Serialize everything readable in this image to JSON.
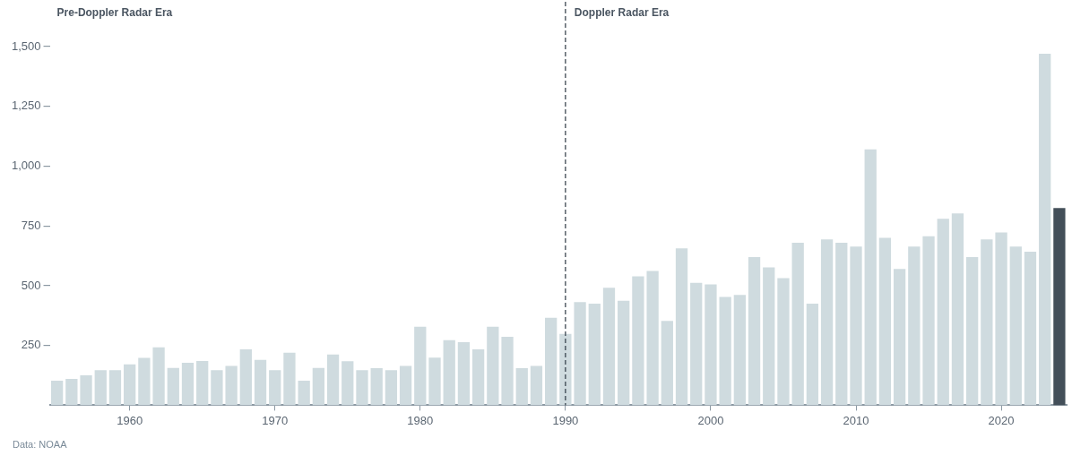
{
  "chart_data": {
    "type": "bar",
    "x": [
      1955,
      1956,
      1957,
      1958,
      1959,
      1960,
      1961,
      1962,
      1963,
      1964,
      1965,
      1966,
      1967,
      1968,
      1969,
      1970,
      1971,
      1972,
      1973,
      1974,
      1975,
      1976,
      1977,
      1978,
      1979,
      1980,
      1981,
      1982,
      1983,
      1984,
      1985,
      1986,
      1987,
      1988,
      1989,
      1990,
      1991,
      1992,
      1993,
      1994,
      1995,
      1996,
      1997,
      1998,
      1999,
      2000,
      2001,
      2002,
      2003,
      2004,
      2005,
      2006,
      2007,
      2008,
      2009,
      2010,
      2011,
      2012,
      2013,
      2014,
      2015,
      2016,
      2017,
      2018,
      2019,
      2020,
      2021,
      2022,
      2023,
      2024
    ],
    "values": [
      103,
      110,
      125,
      147,
      147,
      171,
      198,
      242,
      156,
      178,
      185,
      147,
      164,
      234,
      190,
      147,
      220,
      103,
      156,
      212,
      184,
      147,
      155,
      147,
      164,
      328,
      199,
      272,
      264,
      234,
      328,
      286,
      155,
      164,
      366,
      298,
      431,
      425,
      491,
      437,
      539,
      562,
      353,
      656,
      512,
      505,
      453,
      461,
      620,
      577,
      532,
      680,
      425,
      694,
      680,
      664,
      1070,
      700,
      570,
      664,
      707,
      780,
      802,
      620,
      694,
      723,
      664,
      642,
      1470,
      825
    ],
    "colors": [
      "#cfdbdf",
      "#cfdbdf",
      "#cfdbdf",
      "#cfdbdf",
      "#cfdbdf",
      "#cfdbdf",
      "#cfdbdf",
      "#cfdbdf",
      "#cfdbdf",
      "#cfdbdf",
      "#cfdbdf",
      "#cfdbdf",
      "#cfdbdf",
      "#cfdbdf",
      "#cfdbdf",
      "#cfdbdf",
      "#cfdbdf",
      "#cfdbdf",
      "#cfdbdf",
      "#cfdbdf",
      "#cfdbdf",
      "#cfdbdf",
      "#cfdbdf",
      "#cfdbdf",
      "#cfdbdf",
      "#cfdbdf",
      "#cfdbdf",
      "#cfdbdf",
      "#cfdbdf",
      "#cfdbdf",
      "#cfdbdf",
      "#cfdbdf",
      "#cfdbdf",
      "#cfdbdf",
      "#cfdbdf",
      "#cfdbdf",
      "#cfdbdf",
      "#cfdbdf",
      "#cfdbdf",
      "#cfdbdf",
      "#cfdbdf",
      "#cfdbdf",
      "#cfdbdf",
      "#cfdbdf",
      "#cfdbdf",
      "#cfdbdf",
      "#cfdbdf",
      "#cfdbdf",
      "#cfdbdf",
      "#cfdbdf",
      "#cfdbdf",
      "#cfdbdf",
      "#cfdbdf",
      "#cfdbdf",
      "#cfdbdf",
      "#cfdbdf",
      "#cfdbdf",
      "#cfdbdf",
      "#cfdbdf",
      "#cfdbdf",
      "#cfdbdf",
      "#cfdbdf",
      "#cfdbdf",
      "#cfdbdf",
      "#cfdbdf",
      "#cfdbdf",
      "#cfdbdf",
      "#cfdbdf",
      "#cfdbdf",
      "#434f59"
    ],
    "xlim": [
      1954.5,
      2024.5
    ],
    "xticks": [
      1960,
      1970,
      1980,
      1990,
      2000,
      2010,
      2020
    ],
    "ylim": [
      0,
      1500
    ],
    "yticks": [
      {
        "value": 250,
        "label": "250"
      },
      {
        "value": 500,
        "label": "500"
      },
      {
        "value": 750,
        "label": "750"
      },
      {
        "value": 1000,
        "label": "1,000"
      },
      {
        "value": 1250,
        "label": "1,250"
      },
      {
        "value": 1500,
        "label": "1,500"
      }
    ],
    "ref_lines": [
      {
        "axis": "x",
        "value": 1990,
        "label": "Doppler Radar Era",
        "color": "#2f3a44",
        "line_style": "dashed"
      }
    ],
    "annotations": [
      "Pre-Doppler Radar Era",
      "Data: NOAA"
    ],
    "grid": false,
    "legend": false
  }
}
